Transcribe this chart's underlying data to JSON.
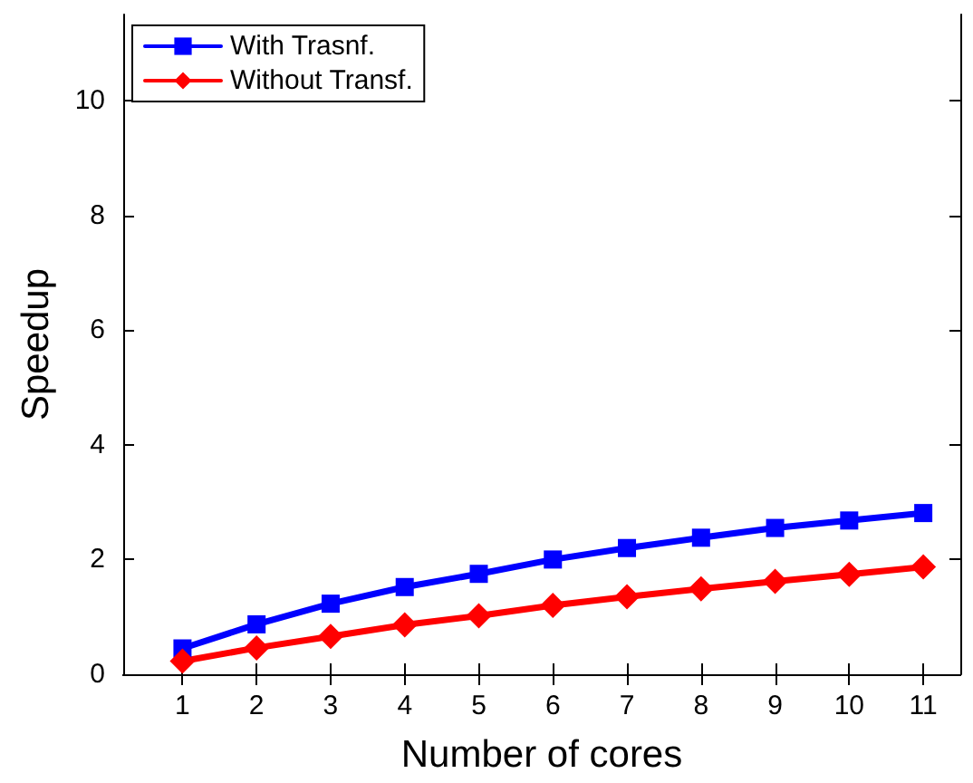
{
  "chart_data": {
    "type": "line",
    "xlabel": "Number of cores",
    "ylabel": "Speedup",
    "x": [
      1,
      2,
      3,
      4,
      5,
      6,
      7,
      8,
      9,
      10,
      11
    ],
    "series": [
      {
        "name": "With Trasnf.",
        "color": "#0000ff",
        "marker": "square",
        "values": [
          0.45,
          0.87,
          1.23,
          1.52,
          1.75,
          2.0,
          2.2,
          2.38,
          2.55,
          2.68,
          2.81
        ]
      },
      {
        "name": "Without Transf.",
        "color": "#ff0000",
        "marker": "diamond",
        "values": [
          0.23,
          0.46,
          0.66,
          0.86,
          1.02,
          1.2,
          1.35,
          1.49,
          1.62,
          1.74,
          1.87
        ]
      }
    ],
    "xlim": [
      0.2,
      11.5
    ],
    "xticks": [
      1,
      2,
      3,
      4,
      5,
      6,
      7,
      8,
      9,
      10,
      11
    ],
    "ylim": [
      0,
      11.5
    ],
    "yticks": [
      0,
      2,
      4,
      6,
      8,
      10
    ],
    "grid": false,
    "legend": "top left",
    "line_style": "solid"
  }
}
